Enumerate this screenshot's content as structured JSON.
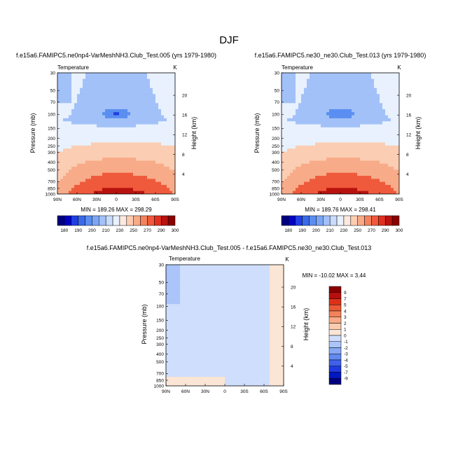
{
  "figure": {
    "title": "DJF",
    "colors": {
      "temperature_levels": [
        "#00007f",
        "#0000c4",
        "#1f3fe1",
        "#3a6ae8",
        "#5a8ef0",
        "#7aa6f5",
        "#a2c1f8",
        "#c9dcfb",
        "#e8f1fd",
        "#fde9df",
        "#fbcdb3",
        "#f8ab88",
        "#f4825f",
        "#ef5a3c",
        "#e03020",
        "#b8130f",
        "#8b0000"
      ],
      "difference_levels": [
        "#00007f",
        "#0018c0",
        "#1e3ae0",
        "#3f62ea",
        "#638af1",
        "#86a8f6",
        "#abc4f9",
        "#cfdefc",
        "#fbe5d5",
        "#f9ccb0",
        "#f6aa86",
        "#f1825c",
        "#ea5a36",
        "#dc3118",
        "#b80f0c",
        "#8b0000"
      ]
    }
  },
  "chart_data": [
    {
      "type": "contour",
      "title": "f.e15a6.FAMIPC5.ne0np4-VarMeshNH3.Club_Test.005 (yrs 1979-1980)",
      "variable": "Temperature",
      "units": "K",
      "x": [
        "90N",
        "60N",
        "30N",
        "0",
        "30S",
        "60S",
        "90S"
      ],
      "ylabel": "Pressure (mb)",
      "y": [
        "30",
        "50",
        "70",
        "100",
        "150",
        "200",
        "250",
        "300",
        "400",
        "500",
        "700",
        "850",
        "1000"
      ],
      "y2label": "Height (km)",
      "y2": [
        "20",
        "16",
        "12",
        "8",
        "4"
      ],
      "min_max_label": "MIN = 189.26   MAX = 298.29",
      "min": 189.26,
      "max": 298.29
    },
    {
      "type": "contour",
      "title": "f.e15a6.FAMIPC5.ne30_ne30.Club_Test.013 (yrs 1979-1980)",
      "variable": "Temperature",
      "units": "K",
      "x": [
        "90N",
        "60N",
        "30N",
        "0",
        "30S",
        "60S",
        "90S"
      ],
      "ylabel": "Pressure (mb)",
      "y": [
        "30",
        "50",
        "70",
        "100",
        "150",
        "200",
        "250",
        "300",
        "400",
        "500",
        "700",
        "850",
        "1000"
      ],
      "y2label": "Height (km)",
      "y2": [
        "20",
        "16",
        "12",
        "8",
        "4"
      ],
      "min_max_label": "MIN = 189.76   MAX = 298.41",
      "min": 189.76,
      "max": 298.41
    },
    {
      "type": "contour",
      "title": "f.e15a6.FAMIPC5.ne0np4-VarMeshNH3.Club_Test.005 - f.e15a6.FAMIPC5.ne30_ne30.Club_Test.013",
      "variable": "Temperature",
      "units": "K",
      "x": [
        "90N",
        "60N",
        "30N",
        "0",
        "30S",
        "60S",
        "90S"
      ],
      "ylabel": "Pressure (mb)",
      "y": [
        "30",
        "50",
        "70",
        "100",
        "150",
        "200",
        "250",
        "300",
        "400",
        "500",
        "700",
        "850",
        "1000"
      ],
      "y2label": "Height (km)",
      "y2": [
        "20",
        "16",
        "12",
        "8",
        "4"
      ],
      "min_max_label": "MIN = -10.02  MAX =   3.44",
      "min": -10.02,
      "max": 3.44
    }
  ],
  "colorbars": {
    "temperature": [
      "180",
      "190",
      "200",
      "210",
      "230",
      "250",
      "270",
      "290",
      "300"
    ],
    "difference": [
      "9",
      "7",
      "5",
      "4",
      "3",
      "2",
      "1",
      "0",
      "-1",
      "-2",
      "-3",
      "-4",
      "-5",
      "-7",
      "-9"
    ]
  }
}
